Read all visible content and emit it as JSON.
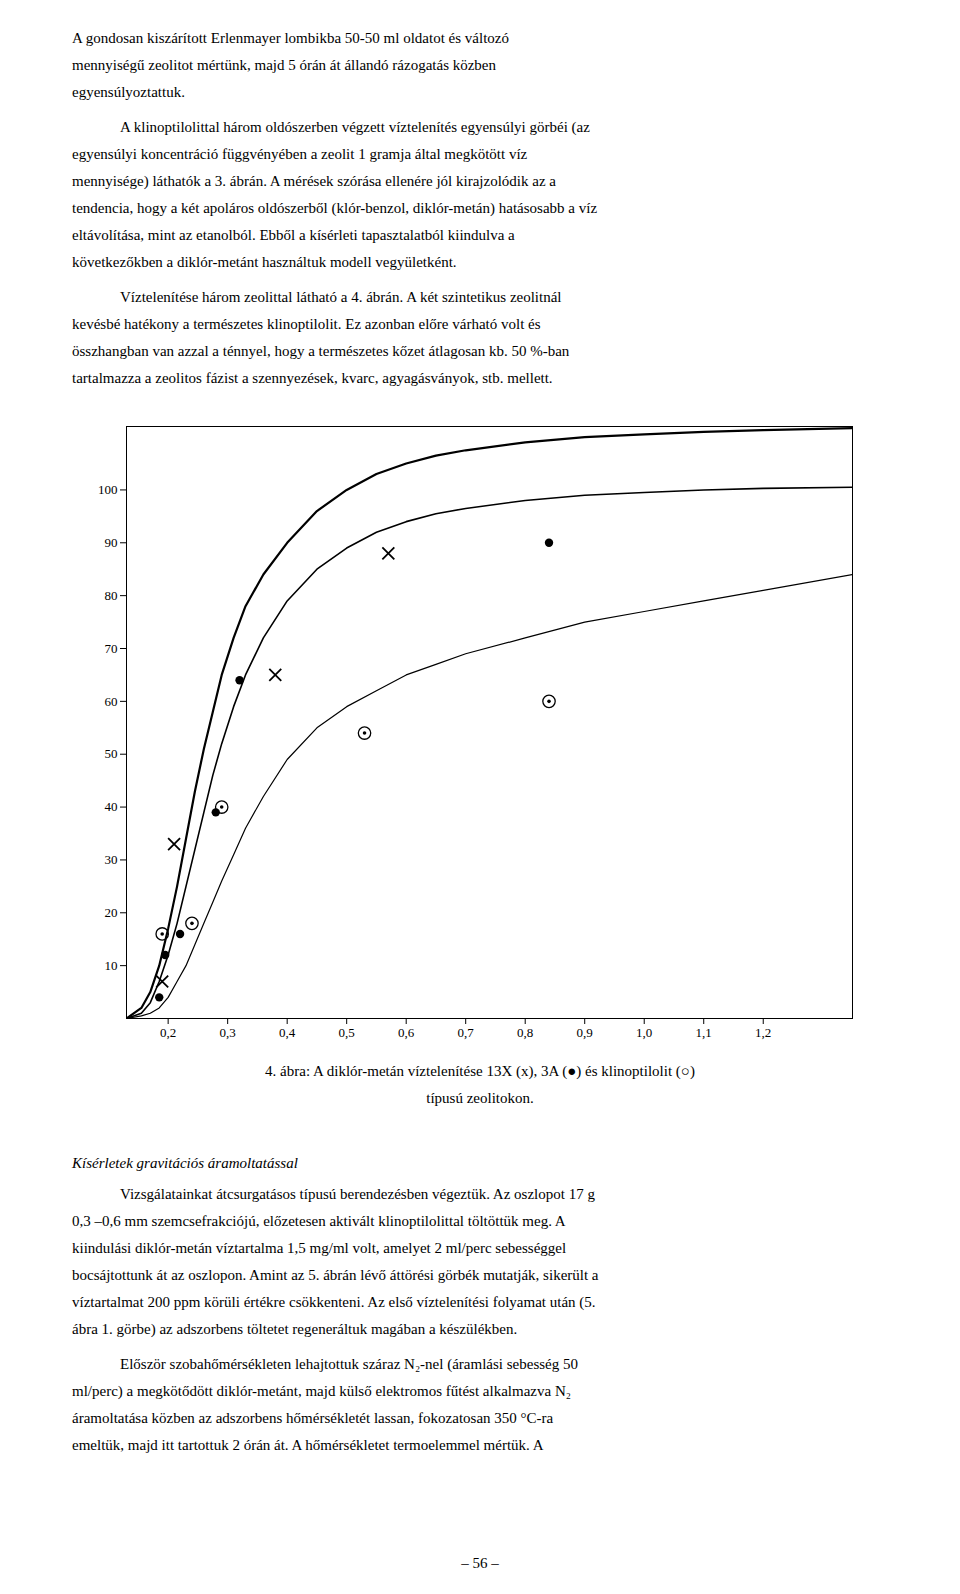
{
  "paragraphs_before": [
    [
      "A gondosan kiszárított Erlenmayer lombikba 50-50 ml oldatot és változó",
      "mennyiségű zeolitot mértünk, majd 5 órán át állandó rázogatás közben",
      "egyensúlyoztattuk."
    ],
    [
      "A klinoptilolittal három oldószerben végzett víztelenítés egyensúlyi görbéi (az",
      "egyensúlyi koncentráció függvényében a zeolit 1 gramja által megkötött víz",
      "mennyisége) láthatók a 3. ábrán. A mérések szórása ellenére jól kirajzolódik az a",
      "tendencia, hogy a két apoláros oldószerből (klór-benzol, diklór-metán) hatásosabb a víz",
      "eltávolítása, mint az etanolból. Ebből a kísérleti tapasztalatból kiindulva a",
      "következőkben a diklór-metánt használtuk modell vegyületként."
    ],
    [
      "Víztelenítése három zeolittal látható a 4. ábrán. A két szintetikus zeolitnál",
      "kevésbé hatékony a természetes klinoptilolit. Ez azonban előre várható volt és",
      "összhangban van azzal a ténnyel, hogy a természetes kőzet átlagosan kb. 50 %-ban",
      "tartalmazza a zeolitos fázist a szennyezések, kvarc, agyagásványok, stb. mellett."
    ]
  ],
  "chart_data": {
    "type": "line",
    "caption": [
      "4. ábra: A diklór-metán víztelenítése 13X (x), 3A (●) és klinoptilolit (○)",
      "típusú zeolitokon."
    ],
    "xlim": [
      0.13,
      1.35
    ],
    "ylim": [
      0,
      112
    ],
    "xticks": [
      {
        "value": 0.2,
        "label": "0,2"
      },
      {
        "value": 0.3,
        "label": "0,3"
      },
      {
        "value": 0.4,
        "label": "0,4"
      },
      {
        "value": 0.5,
        "label": "0,5"
      },
      {
        "value": 0.6,
        "label": "0,6"
      },
      {
        "value": 0.7,
        "label": "0,7"
      },
      {
        "value": 0.8,
        "label": "0,8"
      },
      {
        "value": 0.9,
        "label": "0,9"
      },
      {
        "value": 1.0,
        "label": "1,0"
      },
      {
        "value": 1.1,
        "label": "1,1"
      },
      {
        "value": 1.2,
        "label": "1,2"
      }
    ],
    "yticks": [
      10,
      20,
      30,
      40,
      50,
      60,
      70,
      80,
      90,
      100
    ],
    "series": [
      {
        "type": "line",
        "color": "#000000",
        "x": [
          0.13,
          0.155,
          0.17,
          0.185,
          0.2,
          0.215,
          0.23,
          0.245,
          0.26,
          0.275,
          0.29,
          0.31,
          0.33,
          0.36,
          0.4,
          0.45,
          0.5,
          0.55,
          0.6,
          0.65,
          0.7,
          0.8,
          0.9,
          1.0,
          1.1,
          1.2,
          1.35
        ],
        "values": [
          0,
          2,
          5,
          10,
          17,
          25,
          34,
          43,
          51,
          58,
          65,
          72,
          78,
          84,
          90,
          96,
          100,
          103,
          105,
          106.5,
          107.5,
          109,
          110,
          110.5,
          111,
          111.3,
          111.7
        ]
      },
      {
        "type": "line",
        "color": "#000000",
        "x": [
          0.13,
          0.155,
          0.17,
          0.185,
          0.2,
          0.215,
          0.23,
          0.245,
          0.26,
          0.275,
          0.29,
          0.31,
          0.33,
          0.36,
          0.4,
          0.45,
          0.5,
          0.55,
          0.6,
          0.65,
          0.7,
          0.8,
          0.9,
          1.0,
          1.1,
          1.2,
          1.35
        ],
        "values": [
          0,
          1,
          3,
          7,
          12,
          18,
          25,
          32,
          39,
          46,
          52,
          59,
          65,
          72,
          79,
          85,
          89,
          92,
          94,
          95.5,
          96.5,
          98,
          99,
          99.5,
          100,
          100.3,
          100.5
        ]
      },
      {
        "type": "line",
        "color": "#000000",
        "x": [
          0.13,
          0.155,
          0.17,
          0.185,
          0.2,
          0.215,
          0.23,
          0.245,
          0.26,
          0.275,
          0.29,
          0.31,
          0.33,
          0.36,
          0.4,
          0.45,
          0.5,
          0.55,
          0.6,
          0.65,
          0.7,
          0.8,
          0.9,
          1.0,
          1.1,
          1.2,
          1.35
        ],
        "values": [
          0,
          0.5,
          1,
          2,
          4,
          7,
          10,
          14,
          18,
          22,
          26,
          31,
          36,
          42,
          49,
          55,
          59,
          62,
          65,
          67,
          69,
          72,
          75,
          77,
          79,
          81,
          84
        ]
      },
      {
        "type": "scatter",
        "color": "#000000",
        "marker": "x",
        "x": [
          0.19,
          0.21,
          0.38,
          0.57
        ],
        "values": [
          7,
          33,
          65,
          88
        ]
      },
      {
        "type": "scatter",
        "color": "#000000",
        "marker": "filled_circle",
        "x": [
          0.185,
          0.195,
          0.22,
          0.28,
          0.32,
          0.84
        ],
        "values": [
          4,
          12,
          16,
          39,
          64,
          90
        ]
      },
      {
        "type": "scatter",
        "color": "#000000",
        "marker": "open_circle",
        "x": [
          0.19,
          0.24,
          0.29,
          0.53,
          0.84
        ],
        "values": [
          16,
          18,
          40,
          54,
          60
        ]
      }
    ]
  },
  "section_title": "Kísérletek gravitációs áramoltatással",
  "paragraphs_after": [
    [
      "Vizsgálatainkat átcsurgatásos típusú berendezésben végeztük. Az oszlopot 17 g",
      "0,3 –0,6 mm szemcsefrakciójú, előzetesen aktivált klinoptilolittal töltöttük meg. A",
      "kiindulási diklór-metán víztartalma 1,5 mg/ml volt, amelyet 2 ml/perc sebességgel",
      "bocsájtottunk át az oszlopon. Amint az 5. ábrán lévő áttörési görbék mutatják, sikerült a",
      "víztartalmat 200 ppm körüli értékre csökkenteni. Az első víztelenítési folyamat után (5.",
      "ábra 1. görbe) az adszorbens töltetet regeneráltuk magában a készülékben."
    ],
    [
      "Először szobahőmérsékleten lehajtottuk száraz N₂-nel (áramlási sebesség 50",
      "ml/perc) a megkötődött diklór-metánt, majd külső elektromos fűtést alkalmazva N₂",
      "áramoltatása közben az adszorbens hőmérsékletét lassan, fokozatosan 350 °C-ra",
      "emeltük, majd itt tartottuk 2 órán át. A hőmérsékletet termoelemmel mértük. A"
    ]
  ],
  "page_number": "– 56 –"
}
